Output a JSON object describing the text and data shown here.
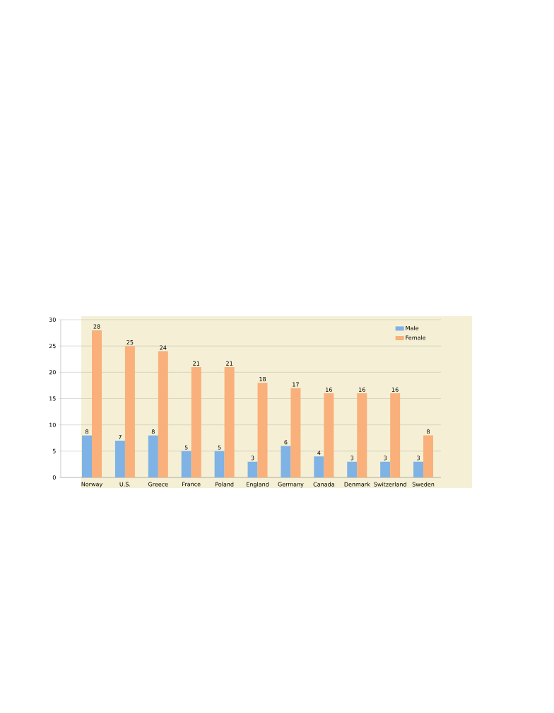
{
  "chart_data": {
    "type": "bar",
    "categories": [
      "Norway",
      "U.S.",
      "Greece",
      "France",
      "Poland",
      "England",
      "Germany",
      "Canada",
      "Denmark",
      "Switzerland",
      "Sweden"
    ],
    "series": [
      {
        "name": "Male",
        "color": "#7fb2e5",
        "values": [
          8,
          7,
          8,
          5,
          5,
          3,
          6,
          4,
          3,
          3,
          3
        ]
      },
      {
        "name": "Female",
        "color": "#f9b07a",
        "values": [
          28,
          25,
          24,
          21,
          21,
          18,
          17,
          16,
          16,
          16,
          8
        ]
      }
    ],
    "ylim": [
      0,
      30
    ],
    "yticks": [
      0,
      5,
      10,
      15,
      20,
      25,
      30
    ],
    "grid": "y",
    "legend": "top right",
    "data_labels": true
  }
}
